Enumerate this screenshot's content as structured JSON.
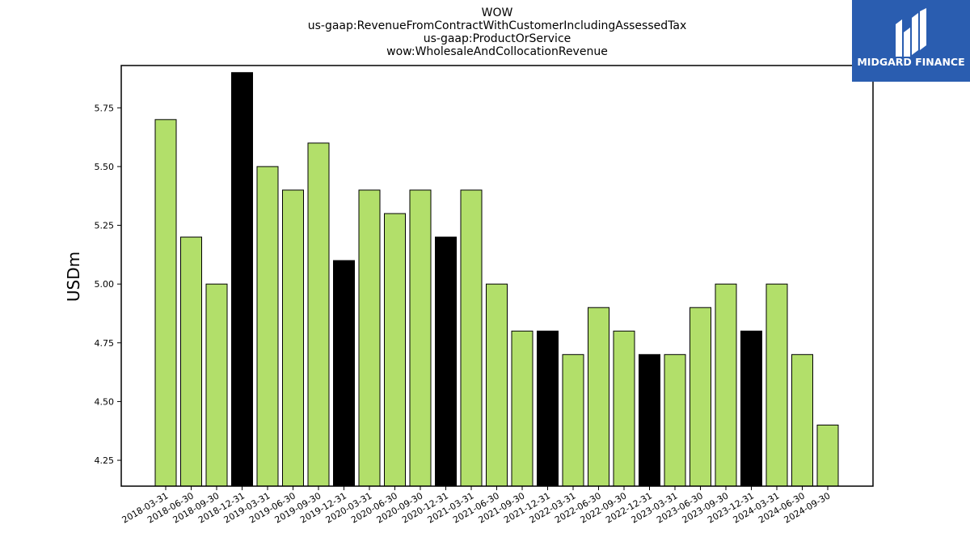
{
  "chart_data": {
    "type": "bar",
    "title_lines": [
      "WOW",
      "us-gaap:RevenueFromContractWithCustomerIncludingAssessedTax",
      "us-gaap:ProductOrService",
      "wow:WholesaleAndCollocationRevenue"
    ],
    "ylabel": "USDm",
    "xlabel": "",
    "ylim": [
      4.14,
      5.93
    ],
    "yticks": [
      "4.25",
      "4.50",
      "4.75",
      "5.00",
      "5.25",
      "5.50",
      "5.75"
    ],
    "grid": false,
    "categories": [
      "2018-03-31",
      "2018-06-30",
      "2018-09-30",
      "2018-12-31",
      "2019-03-31",
      "2019-06-30",
      "2019-09-30",
      "2019-12-31",
      "2020-03-31",
      "2020-06-30",
      "2020-09-30",
      "2020-12-31",
      "2021-03-31",
      "2021-06-30",
      "2021-09-30",
      "2021-12-31",
      "2022-03-31",
      "2022-06-30",
      "2022-09-30",
      "2022-12-31",
      "2023-03-31",
      "2023-06-30",
      "2023-09-30",
      "2023-12-31",
      "2024-03-31",
      "2024-06-30",
      "2024-09-30"
    ],
    "values": [
      5.7,
      5.2,
      5.0,
      5.9,
      5.5,
      5.4,
      5.6,
      5.1,
      5.4,
      5.3,
      5.4,
      5.2,
      5.4,
      5.0,
      4.8,
      4.8,
      4.7,
      4.9,
      4.8,
      4.7,
      4.7,
      4.9,
      5.0,
      4.8,
      5.0,
      4.7,
      4.4
    ],
    "colors": {
      "quarter": "#b2df6a",
      "year_end": "#000000",
      "edge": "#000000"
    }
  },
  "logo": {
    "text": "MIDGARD FINANCE",
    "background": "#2a5db0"
  }
}
